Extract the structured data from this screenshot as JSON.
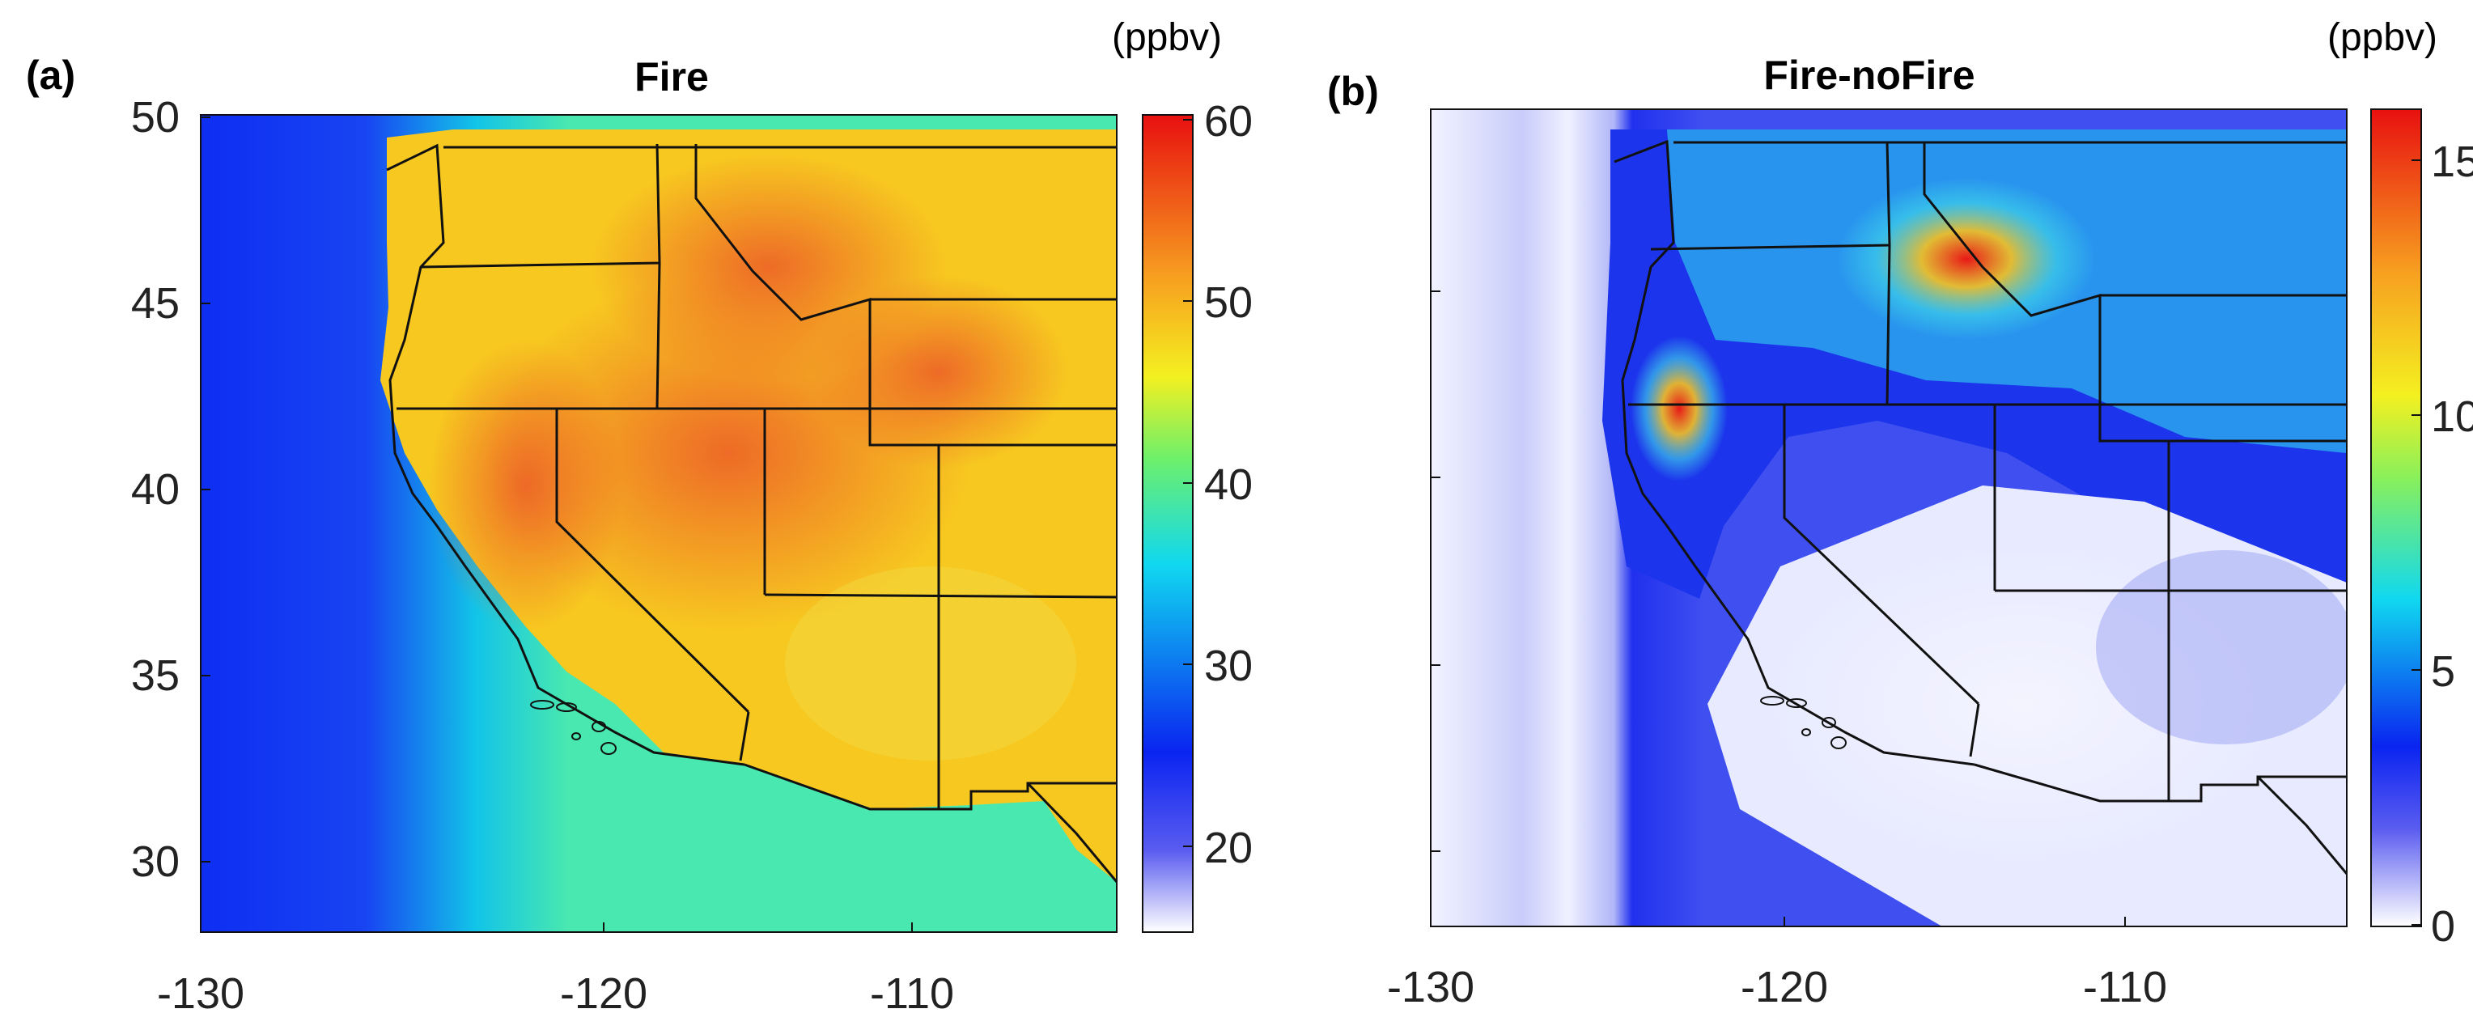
{
  "panels": [
    {
      "id": "a",
      "panel_label": "(a)",
      "title": "Fire",
      "unit": "(ppbv)",
      "x_ticks": [
        "-130",
        "-120",
        "-110"
      ],
      "y_ticks": [
        "50",
        "45",
        "40",
        "35",
        "30"
      ],
      "colorbar_ticks": [
        "60",
        "50",
        "40",
        "30",
        "20"
      ]
    },
    {
      "id": "b",
      "panel_label": "(b)",
      "title": "Fire-noFire",
      "unit": "(ppbv)",
      "x_ticks": [
        "-130",
        "-120",
        "-110"
      ],
      "y_ticks": [],
      "colorbar_ticks": [
        "15",
        "10",
        "5",
        "0"
      ]
    }
  ],
  "map_data": {
    "lon_range": [
      -130,
      -103
    ],
    "lat_range": [
      28,
      50
    ],
    "panel_a": {
      "field": "Fire ozone",
      "colorbar_range_ppbv": [
        15,
        60
      ]
    },
    "panel_b": {
      "field": "Fire minus noFire ozone",
      "colorbar_range_ppbv": [
        0,
        16
      ]
    }
  },
  "colors": {
    "map_a_ocean": "#1a3cf2",
    "map_a_coast": "#12c4e8",
    "map_a_land": "#f7c21e",
    "map_a_hot": "#f0622a",
    "map_b_ocean": "#eef0ff",
    "map_b_coast": "#2a36ee",
    "map_b_hot": "#ef2a18",
    "border": "#111111"
  }
}
